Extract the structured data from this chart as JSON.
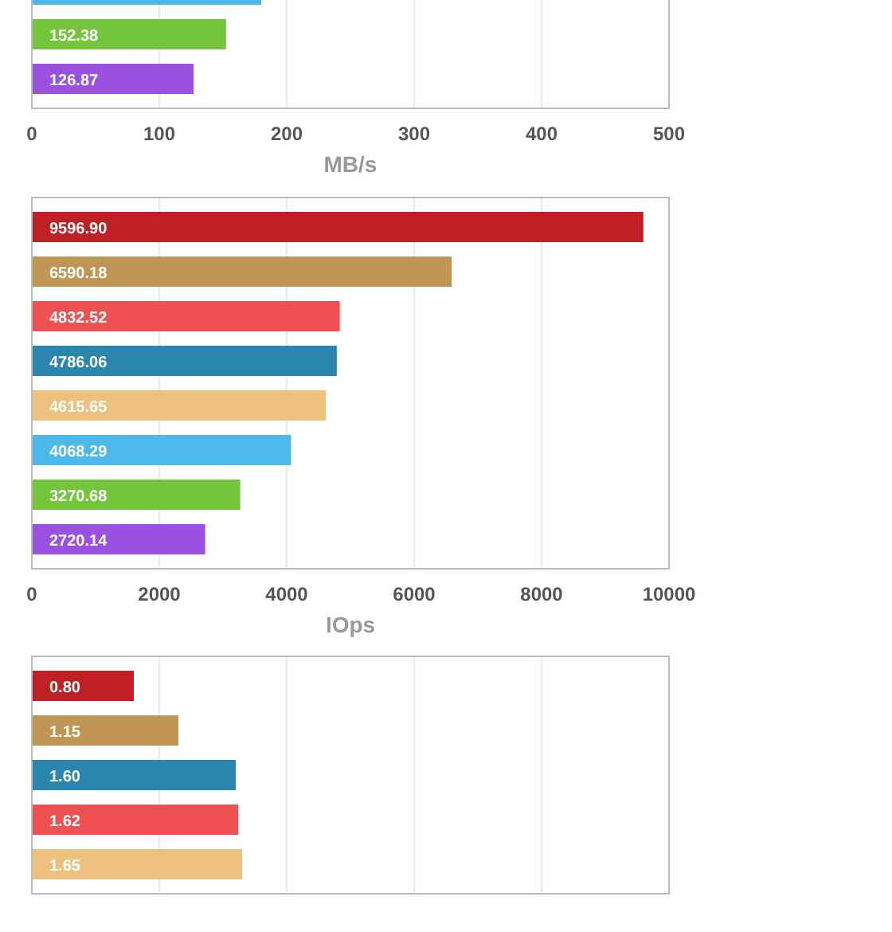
{
  "chart_data": [
    {
      "type": "bar",
      "orientation": "horizontal",
      "categories": [
        null,
        null,
        null
      ],
      "values": [
        180,
        152.38,
        126.87
      ],
      "value_labels": [
        null,
        "152.38",
        "126.87"
      ],
      "colors": [
        "#4cb8e8",
        "#74c43c",
        "#9b51e0"
      ],
      "xlim": [
        0,
        500
      ],
      "xticks": [
        0,
        100,
        200,
        300,
        400,
        500
      ],
      "xlabel": "MB/s",
      "grid": "x"
    },
    {
      "type": "bar",
      "orientation": "horizontal",
      "categories": [
        null,
        null,
        null,
        null,
        null,
        null,
        null,
        null
      ],
      "values": [
        9596.9,
        6590.18,
        4832.52,
        4786.06,
        4615.65,
        4068.29,
        3270.68,
        2720.14
      ],
      "value_labels": [
        "9596.90",
        "6590.18",
        "4832.52",
        "4786.06",
        "4615.65",
        "4068.29",
        "3270.68",
        "2720.14"
      ],
      "colors": [
        "#bf2025",
        "#c19553",
        "#ef5052",
        "#2a86ae",
        "#eec07e",
        "#4cb9ea",
        "#74c43c",
        "#9b51e0"
      ],
      "xlim": [
        0,
        10000
      ],
      "xticks": [
        0,
        2000,
        4000,
        6000,
        8000,
        10000
      ],
      "xlabel": "IOps",
      "grid": "x"
    },
    {
      "type": "bar",
      "orientation": "horizontal",
      "categories": [
        null,
        null,
        null,
        null,
        null
      ],
      "values": [
        0.8,
        1.15,
        1.6,
        1.62,
        1.65
      ],
      "value_labels": [
        "0.80",
        "1.15",
        "1.60",
        "1.62",
        "1.65"
      ],
      "colors": [
        "#bf2025",
        "#c19553",
        "#2a86ae",
        "#ef5052",
        "#eec07e"
      ],
      "xlim": [
        0,
        5
      ],
      "xticks": [
        0,
        1,
        2,
        3,
        4,
        5
      ],
      "grid": "x",
      "tick_labels": false
    }
  ]
}
